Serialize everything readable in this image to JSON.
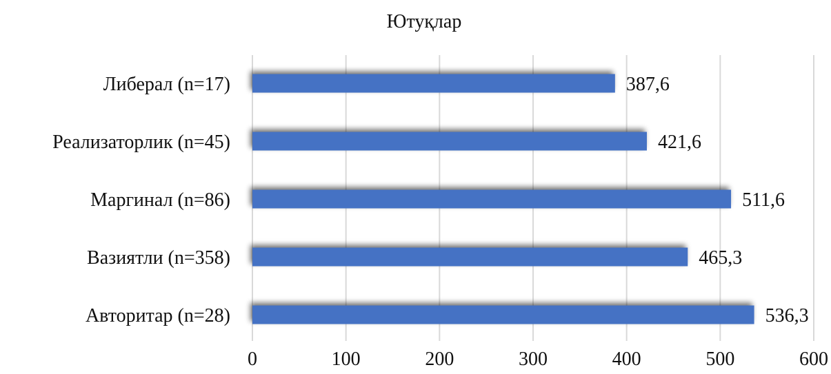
{
  "chart_data": {
    "type": "bar",
    "orientation": "horizontal",
    "title": "Ютуқлар",
    "categories": [
      "Либерал (n=17)",
      "Реализаторлик (n=45)",
      "Маргинал (n=86)",
      "Вазиятли (n=358)",
      "Авторитар (n=28)"
    ],
    "values": [
      387.6,
      421.6,
      511.6,
      465.3,
      536.3
    ],
    "data_labels": [
      "387,6",
      "421,6",
      "511,6",
      "465,3",
      "536,3"
    ],
    "xlim": [
      0,
      600
    ],
    "xticks": [
      0,
      100,
      200,
      300,
      400,
      500,
      600
    ],
    "xtick_labels": [
      "0",
      "100",
      "200",
      "300",
      "400",
      "500",
      "600"
    ],
    "xlabel": "",
    "ylabel": "",
    "grid": "vertical",
    "legend": "none",
    "bar_color": "#4472c4"
  }
}
